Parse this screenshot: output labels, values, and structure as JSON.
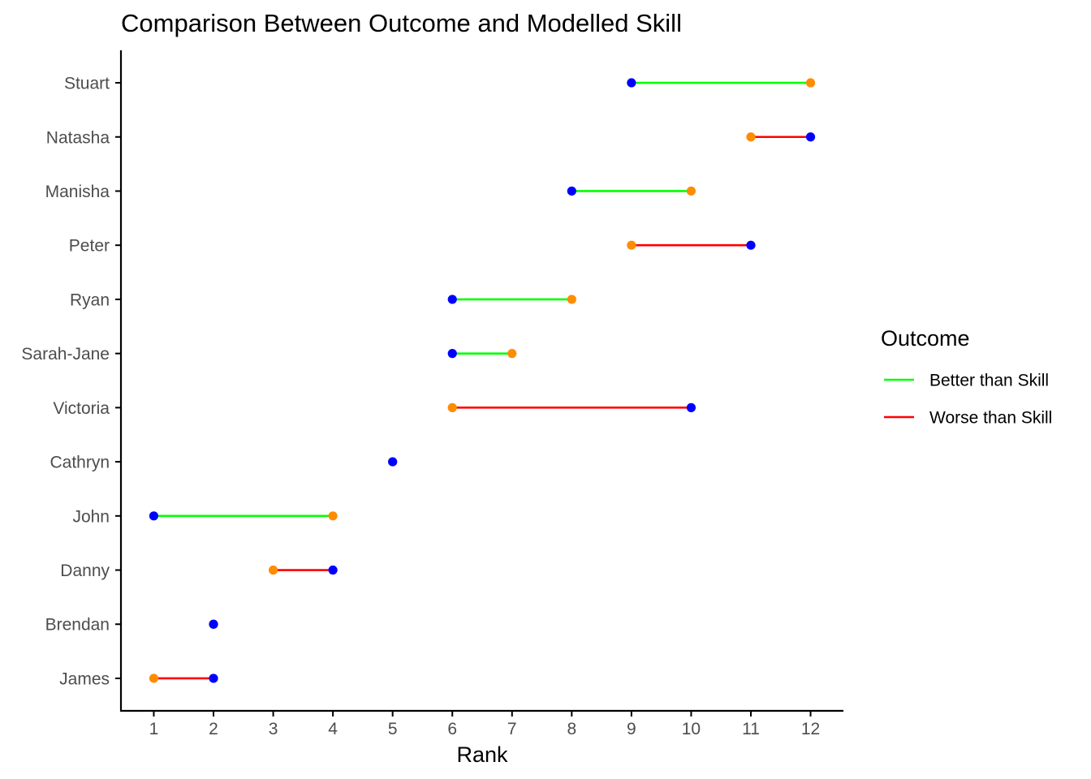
{
  "chart_data": {
    "type": "dumbbell",
    "title": "Comparison Between Outcome and Modelled Skill",
    "xlabel": "Rank",
    "ylabel": "",
    "xlim": [
      0.45,
      12.55
    ],
    "x_ticks": [
      1,
      2,
      3,
      4,
      5,
      6,
      7,
      8,
      9,
      10,
      11,
      12
    ],
    "grid": false,
    "legend": {
      "title": "Outcome",
      "position": "right",
      "entries": [
        {
          "label": "Better than Skill",
          "color": "#00ff00"
        },
        {
          "label": "Worse than Skill",
          "color": "#ff0000"
        }
      ]
    },
    "point_colors": {
      "skill": "#0000ff",
      "outcome": "#ff8c00"
    },
    "rows": [
      {
        "name": "Stuart",
        "skill": 9,
        "outcome": 12,
        "result": "Better than Skill"
      },
      {
        "name": "Natasha",
        "skill": 12,
        "outcome": 11,
        "result": "Worse than Skill"
      },
      {
        "name": "Manisha",
        "skill": 8,
        "outcome": 10,
        "result": "Better than Skill"
      },
      {
        "name": "Peter",
        "skill": 11,
        "outcome": 9,
        "result": "Worse than Skill"
      },
      {
        "name": "Ryan",
        "skill": 6,
        "outcome": 8,
        "result": "Better than Skill"
      },
      {
        "name": "Sarah-Jane",
        "skill": 6,
        "outcome": 7,
        "result": "Better than Skill"
      },
      {
        "name": "Victoria",
        "skill": 10,
        "outcome": 6,
        "result": "Worse than Skill"
      },
      {
        "name": "Cathryn",
        "skill": 5,
        "outcome": 5,
        "result": "Equal"
      },
      {
        "name": "John",
        "skill": 1,
        "outcome": 4,
        "result": "Better than Skill"
      },
      {
        "name": "Danny",
        "skill": 4,
        "outcome": 3,
        "result": "Worse than Skill"
      },
      {
        "name": "Brendan",
        "skill": 2,
        "outcome": 2,
        "result": "Equal"
      },
      {
        "name": "James",
        "skill": 2,
        "outcome": 1,
        "result": "Worse than Skill"
      }
    ]
  }
}
